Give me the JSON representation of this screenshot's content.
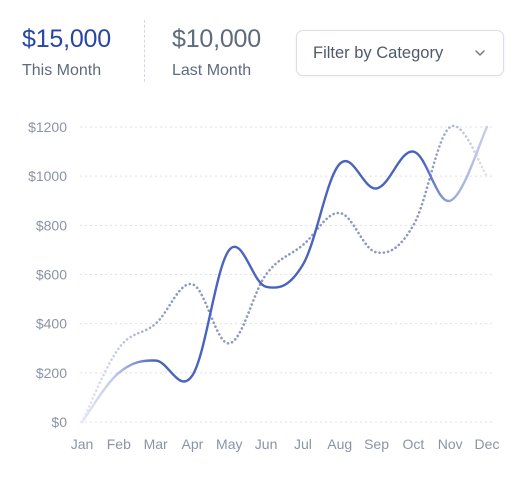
{
  "stats": {
    "this_month": {
      "value": "$15,000",
      "label": "This Month"
    },
    "last_month": {
      "value": "$10,000",
      "label": "Last Month"
    }
  },
  "filter": {
    "label": "Filter by Category",
    "icon": "chevron-down-icon"
  },
  "colors": {
    "this_month_series": "#4a63bd",
    "last_month_series": "#8d98c2",
    "gridline": "#dde1e8",
    "tick_label": "#8a94a6"
  },
  "chart_data": {
    "type": "line",
    "categories": [
      "Jan",
      "Feb",
      "Mar",
      "Apr",
      "May",
      "Jun",
      "Jul",
      "Aug",
      "Sep",
      "Oct",
      "Nov",
      "Dec"
    ],
    "series": [
      {
        "values": [
          0,
          200,
          250,
          190,
          700,
          550,
          640,
          1050,
          950,
          1100,
          900,
          1200
        ],
        "style": "solid"
      },
      {
        "values": [
          0,
          300,
          400,
          560,
          320,
          600,
          720,
          850,
          690,
          800,
          1200,
          1000
        ],
        "style": "dotted"
      }
    ],
    "y_ticks": [
      "$0",
      "$200",
      "$400",
      "$600",
      "$800",
      "$1000",
      "$1200"
    ],
    "ylim": [
      0,
      1200
    ],
    "grid": true,
    "legend": "none"
  }
}
